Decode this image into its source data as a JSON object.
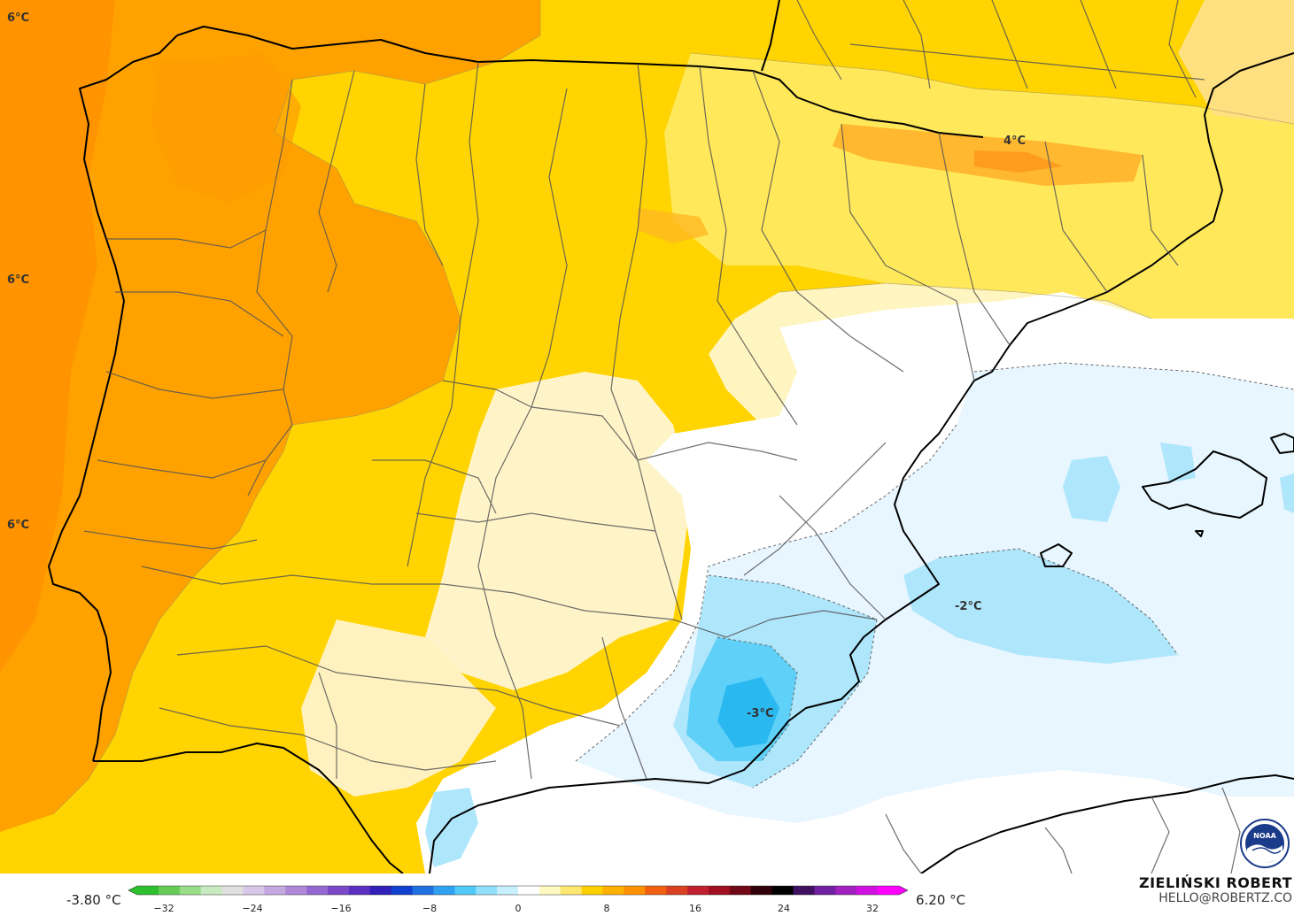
{
  "map": {
    "contour_labels": [
      {
        "id": "tl",
        "text": "6°C"
      },
      {
        "id": "ml",
        "text": "6°C"
      },
      {
        "id": "bl",
        "text": "6°C"
      },
      {
        "id": "pyr",
        "text": "4°C"
      },
      {
        "id": "sea",
        "text": "-2°C"
      },
      {
        "id": "mur",
        "text": "-3°C"
      }
    ]
  },
  "legend": {
    "min_label": "-3.80 °C",
    "max_label": "6.20 °C",
    "ticks": [
      "−32",
      "−24",
      "−16",
      "−8",
      "0",
      "8",
      "16",
      "24",
      "32"
    ],
    "colors": [
      "#2dbf2d",
      "#66cc55",
      "#99dd88",
      "#c8eac0",
      "#e0e0e0",
      "#d8c8e8",
      "#c4a8e0",
      "#b088d8",
      "#9468d0",
      "#7a48c8",
      "#5a30c0",
      "#3020b8",
      "#1040d0",
      "#2070e0",
      "#30a0f0",
      "#50c8f8",
      "#90e0fc",
      "#c8f0ff",
      "#ffffff",
      "#fff8c0",
      "#ffe870",
      "#ffd000",
      "#ffb000",
      "#ff9000",
      "#f06010",
      "#d84020",
      "#c02030",
      "#a01020",
      "#700818",
      "#300008",
      "#000000",
      "#401060",
      "#7020a0",
      "#a020c0",
      "#d010e0",
      "#ff00ff"
    ]
  },
  "author": {
    "name": "ZIELIŃSKI ROBERT",
    "email": "HELLO@ROBERTZ.CO"
  },
  "logo": {
    "name": "noaa-logo",
    "text": "NOAA"
  }
}
